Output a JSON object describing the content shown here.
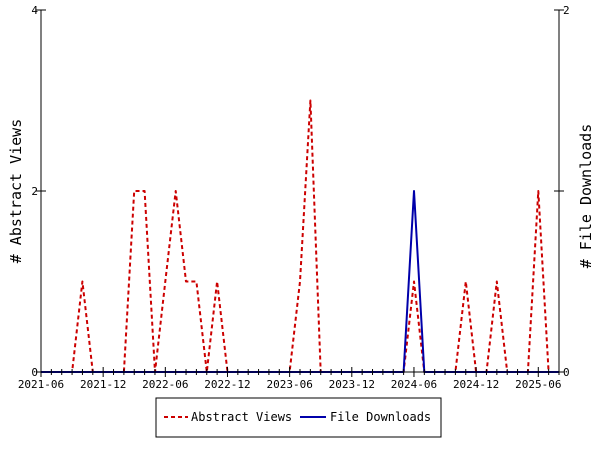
{
  "chart_data": {
    "type": "line",
    "x": [
      "2021-06",
      "2021-07",
      "2021-08",
      "2021-09",
      "2021-10",
      "2021-11",
      "2021-12",
      "2022-01",
      "2022-02",
      "2022-03",
      "2022-04",
      "2022-05",
      "2022-06",
      "2022-07",
      "2022-08",
      "2022-09",
      "2022-10",
      "2022-11",
      "2022-12",
      "2023-01",
      "2023-02",
      "2023-03",
      "2023-04",
      "2023-05",
      "2023-06",
      "2023-07",
      "2023-08",
      "2023-09",
      "2023-10",
      "2023-11",
      "2023-12",
      "2024-01",
      "2024-02",
      "2024-03",
      "2024-04",
      "2024-05",
      "2024-06",
      "2024-07",
      "2024-08",
      "2024-09",
      "2024-10",
      "2024-11",
      "2024-12",
      "2025-01",
      "2025-02",
      "2025-03",
      "2025-04",
      "2025-05",
      "2025-06",
      "2025-07",
      "2025-08"
    ],
    "series": [
      {
        "name": "Abstract Views",
        "axis": "left",
        "color": "#cc0000",
        "style": "dashed",
        "values": [
          0,
          0,
          0,
          0,
          1,
          0,
          0,
          0,
          0,
          2,
          2,
          0,
          1,
          2,
          1,
          1,
          0,
          1,
          0,
          0,
          0,
          0,
          0,
          0,
          0,
          1,
          3,
          0,
          0,
          0,
          0,
          0,
          0,
          0,
          0,
          0,
          1,
          0,
          0,
          0,
          0,
          1,
          0,
          0,
          1,
          0,
          0,
          0,
          2,
          0,
          0
        ]
      },
      {
        "name": "File Downloads",
        "axis": "right",
        "color": "#0000aa",
        "style": "solid",
        "values": [
          0,
          0,
          0,
          0,
          0,
          0,
          0,
          0,
          0,
          0,
          0,
          0,
          0,
          0,
          0,
          0,
          0,
          0,
          0,
          0,
          0,
          0,
          0,
          0,
          0,
          0,
          0,
          0,
          0,
          0,
          0,
          0,
          0,
          0,
          0,
          0,
          1,
          0,
          0,
          0,
          0,
          0,
          0,
          0,
          0,
          0,
          0,
          0,
          0,
          0,
          0
        ]
      }
    ],
    "x_ticks": [
      "2021-06",
      "2021-12",
      "2022-06",
      "2022-12",
      "2023-06",
      "2023-12",
      "2024-06",
      "2024-12",
      "2025-06"
    ],
    "ylabel": "# Abstract Views",
    "y2label": "# File Downloads",
    "ylim": [
      0,
      4
    ],
    "y2lim": [
      0,
      2
    ],
    "y_ticks": [
      "0",
      "2",
      "4"
    ],
    "y2_ticks": [
      "0",
      "1",
      "2"
    ],
    "legend_position": "bottom",
    "grid": false
  }
}
